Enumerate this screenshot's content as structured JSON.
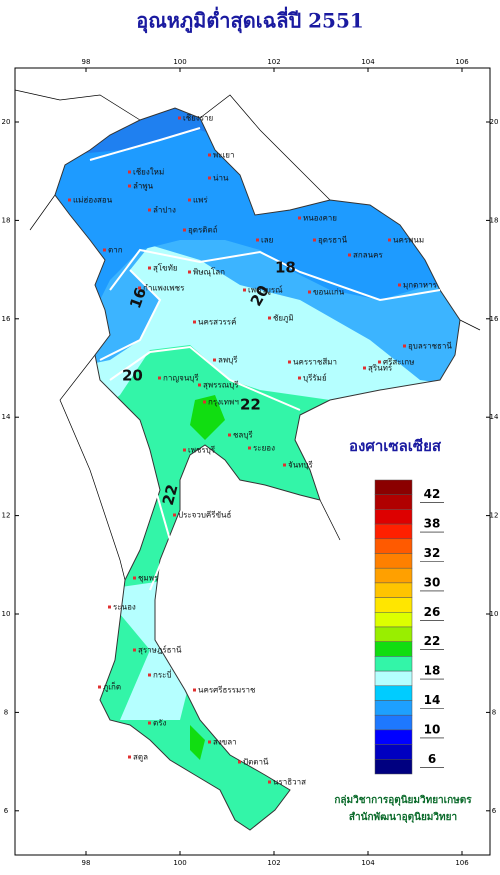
{
  "header": {
    "title": "อุณหภูมิต่ำสุดเฉลี่ปี  2551"
  },
  "map": {
    "lon_ticks": [
      98,
      100,
      102,
      104,
      106
    ],
    "lat_ticks": [
      6,
      8,
      10,
      12,
      14,
      16,
      18,
      20
    ],
    "contour_labels": [
      "16",
      "18",
      "20",
      "20",
      "22",
      "22"
    ],
    "places": [
      "เชียงราย",
      "แม่ฮ่องสอน",
      "เชียงใหม่",
      "ลำพูน",
      "พะเยา",
      "น่าน",
      "แพร่",
      "ลำปาง",
      "อุตรดิตถ์",
      "ตาก",
      "สุโขทัย",
      "พิษณุโลก",
      "กำแพงเพชร",
      "เพชรบูรณ์",
      "หนองคาย",
      "เลย",
      "อุดรธานี",
      "นครพนม",
      "สกลนคร",
      "มุกดาหาร",
      "ขอนแก่น",
      "ชัยภูมิ",
      "นครราชสีมา",
      "บุรีรัมย์",
      "สุรินทร์",
      "อุบลราชธานี",
      "ศรีสะเกษ",
      "นครสวรรค์",
      "ลพบุรี",
      "สุพรรณบุรี",
      "กาญจนบุรี",
      "กรุงเทพฯ",
      "ชลบุรี",
      "ระยอง",
      "จันทบุรี",
      "เพชรบุรี",
      "ประจวบคีรีขันธ์",
      "ชุมพร",
      "ระนอง",
      "สุราษฎร์ธานี",
      "นครศรีธรรมราช",
      "ภูเก็ต",
      "กระบี่",
      "ตรัง",
      "สงขลา",
      "ปัตตานี",
      "นราธิวาส",
      "สตูล"
    ]
  },
  "legend": {
    "title": "องศาเซลเซียส",
    "colors": [
      "#8b0000",
      "#b00000",
      "#dd0000",
      "#ff2000",
      "#ff5a00",
      "#ff8000",
      "#ffa000",
      "#ffc400",
      "#ffe600",
      "#ddff00",
      "#99ee00",
      "#11dd11",
      "#33f5a8",
      "#b5ffff",
      "#00ccff",
      "#1ea0ff",
      "#1e78ff",
      "#0000ff",
      "#0000c0",
      "#000080"
    ],
    "labels": [
      "42",
      "38",
      "32",
      "30",
      "26",
      "22",
      "18",
      "14",
      "10",
      "6"
    ]
  },
  "footer": {
    "line1": "กลุ่มวิชาการอุตุนิยมวิทยาเกษตร",
    "line2": "สำนักพัฒนาอุตุนิยมวิทยา"
  }
}
